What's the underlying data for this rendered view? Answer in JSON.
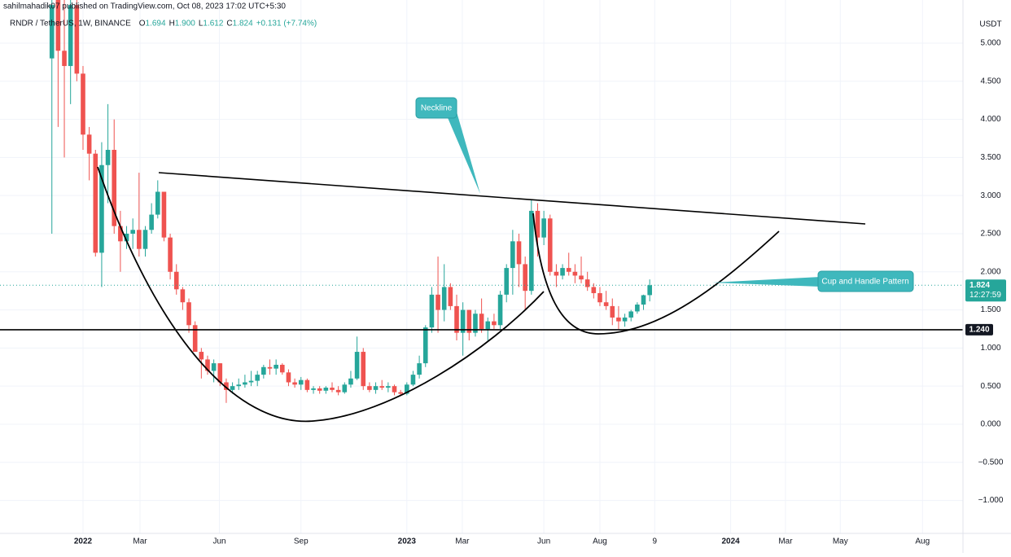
{
  "chart_data": {
    "type": "candlestick",
    "caption": "sahilmahadik07 published on TradingView.com, Oct 08, 2023 17:02 UTC+5:30",
    "title": "RNDR / TetherUS, 1W, BINANCE",
    "legend": [
      {
        "label": "O",
        "value": "1.694"
      },
      {
        "label": "H",
        "value": "1.900"
      },
      {
        "label": "L",
        "value": "1.612"
      },
      {
        "label": "C",
        "value": "1.824"
      }
    ],
    "change": "+0.131 (+7.74%)",
    "currency": "USDT",
    "countdown": "12:27:59",
    "annotations": [
      "Neckline",
      "Cup and Handle Pattern"
    ],
    "hline": {
      "value": 1.24,
      "label": "1.240"
    },
    "up_color": "#26a69a",
    "down_color": "#ef5350",
    "grid": true,
    "x": [
      -5,
      -4,
      -3,
      -2,
      -1,
      0,
      1,
      2,
      3,
      4,
      5,
      6,
      7,
      8,
      9,
      10,
      11,
      12,
      13,
      14,
      15,
      16,
      17,
      18,
      19,
      20,
      21,
      22,
      23,
      24,
      25,
      26,
      27,
      28,
      29,
      30,
      31,
      32,
      33,
      34,
      35,
      36,
      37,
      38,
      39,
      40,
      41,
      42,
      43,
      44,
      45,
      46,
      47,
      48,
      49,
      50,
      51,
      52,
      53,
      54,
      55,
      56,
      57,
      58,
      59,
      60,
      61,
      62,
      63,
      64,
      65,
      66,
      67,
      68,
      69,
      70,
      71,
      72,
      73,
      74,
      75,
      76,
      77,
      78,
      79,
      80,
      81,
      82,
      83,
      84,
      85,
      86,
      87,
      88,
      89,
      90,
      91
    ],
    "open": [
      4.8,
      5.6,
      4.9,
      4.7,
      5.5,
      4.6,
      3.8,
      3.55,
      2.25,
      3.4,
      3.6,
      2.6,
      2.4,
      2.5,
      2.55,
      2.3,
      2.55,
      2.75,
      3.05,
      2.45,
      2.0,
      1.77,
      1.6,
      1.3,
      0.95,
      0.85,
      0.7,
      0.8,
      0.55,
      0.45,
      0.5,
      0.52,
      0.55,
      0.57,
      0.65,
      0.75,
      0.73,
      0.78,
      0.68,
      0.55,
      0.52,
      0.58,
      0.45,
      0.47,
      0.44,
      0.48,
      0.45,
      0.42,
      0.52,
      0.6,
      0.95,
      0.5,
      0.45,
      0.5,
      0.48,
      0.5,
      0.42,
      0.4,
      0.52,
      0.65,
      0.8,
      1.27,
      1.7,
      1.5,
      1.8,
      1.55,
      1.2,
      1.5,
      1.2,
      1.45,
      1.25,
      1.35,
      1.3,
      1.7,
      2.05,
      2.4,
      2.1,
      1.75,
      2.8,
      2.45,
      2.7,
      2.0,
      1.95,
      2.05,
      2.0,
      1.95,
      1.9,
      1.8,
      1.72,
      1.6,
      1.55,
      1.4,
      1.35,
      1.4,
      1.48,
      1.57,
      1.694
    ],
    "high": [
      5.6,
      5.6,
      5.6,
      5.6,
      5.6,
      4.7,
      3.9,
      3.6,
      3.7,
      4.2,
      4.0,
      2.8,
      2.6,
      2.7,
      3.3,
      2.6,
      2.9,
      3.2,
      3.05,
      2.5,
      2.1,
      1.8,
      1.65,
      1.35,
      1.0,
      0.9,
      0.85,
      0.8,
      0.6,
      0.55,
      0.6,
      0.65,
      0.7,
      0.7,
      0.78,
      0.85,
      0.85,
      0.8,
      0.72,
      0.6,
      0.62,
      0.6,
      0.5,
      0.5,
      0.5,
      0.55,
      0.5,
      0.55,
      0.7,
      1.15,
      1.0,
      0.55,
      0.55,
      0.58,
      0.55,
      0.52,
      0.45,
      0.55,
      0.7,
      0.9,
      1.3,
      1.8,
      2.2,
      2.1,
      1.85,
      1.7,
      1.6,
      1.5,
      1.5,
      1.65,
      1.4,
      1.45,
      1.75,
      2.1,
      2.55,
      2.5,
      2.2,
      2.95,
      2.9,
      2.8,
      2.75,
      2.1,
      2.1,
      2.25,
      2.1,
      2.2,
      2.0,
      1.85,
      1.8,
      1.75,
      1.65,
      1.55,
      1.45,
      1.5,
      1.6,
      1.7,
      1.9
    ],
    "low": [
      2.5,
      3.9,
      3.5,
      4.2,
      4.5,
      3.6,
      3.2,
      2.2,
      1.8,
      2.9,
      2.5,
      2.0,
      2.3,
      2.3,
      2.2,
      2.2,
      2.5,
      2.7,
      2.4,
      1.9,
      1.7,
      1.5,
      1.2,
      0.95,
      0.6,
      0.65,
      0.55,
      0.5,
      0.28,
      0.4,
      0.45,
      0.48,
      0.5,
      0.5,
      0.6,
      0.65,
      0.65,
      0.65,
      0.5,
      0.48,
      0.45,
      0.42,
      0.4,
      0.4,
      0.4,
      0.42,
      0.38,
      0.4,
      0.48,
      0.58,
      0.45,
      0.42,
      0.4,
      0.45,
      0.42,
      0.38,
      0.38,
      0.38,
      0.5,
      0.6,
      0.75,
      1.2,
      1.2,
      1.35,
      1.5,
      1.1,
      0.9,
      1.1,
      1.15,
      1.2,
      1.1,
      1.25,
      1.25,
      1.6,
      1.7,
      1.8,
      1.5,
      1.7,
      2.2,
      2.35,
      1.95,
      1.8,
      1.9,
      1.95,
      1.85,
      1.85,
      1.75,
      1.65,
      1.55,
      1.5,
      1.3,
      1.25,
      1.28,
      1.35,
      1.45,
      1.5,
      1.612
    ],
    "close": [
      5.5,
      4.9,
      4.7,
      5.5,
      4.6,
      3.8,
      3.55,
      2.25,
      3.4,
      3.6,
      2.6,
      2.4,
      2.5,
      2.55,
      2.3,
      2.55,
      2.75,
      3.05,
      2.45,
      2.0,
      1.77,
      1.6,
      1.3,
      0.95,
      0.85,
      0.7,
      0.8,
      0.55,
      0.45,
      0.5,
      0.52,
      0.55,
      0.57,
      0.65,
      0.75,
      0.73,
      0.78,
      0.68,
      0.55,
      0.52,
      0.58,
      0.45,
      0.47,
      0.44,
      0.48,
      0.45,
      0.42,
      0.52,
      0.6,
      0.95,
      0.5,
      0.45,
      0.5,
      0.48,
      0.5,
      0.42,
      0.4,
      0.52,
      0.65,
      0.8,
      1.27,
      1.7,
      1.5,
      1.8,
      1.55,
      1.2,
      1.5,
      1.2,
      1.45,
      1.25,
      1.35,
      1.3,
      1.7,
      2.05,
      2.4,
      2.1,
      1.75,
      2.8,
      2.45,
      2.7,
      2.0,
      1.95,
      2.05,
      2.0,
      1.95,
      1.9,
      1.8,
      1.72,
      1.6,
      1.55,
      1.4,
      1.35,
      1.4,
      1.48,
      1.57,
      1.693,
      1.824
    ],
    "xlim": [
      -13.33,
      141.3
    ],
    "xticks": [
      {
        "value": 0,
        "label": "2022"
      },
      {
        "value": 9.15,
        "label": "Mar"
      },
      {
        "value": 21.9,
        "label": "Jun"
      },
      {
        "value": 35,
        "label": "Sep"
      },
      {
        "value": 52,
        "label": "2023"
      },
      {
        "value": 60.9,
        "label": "Mar"
      },
      {
        "value": 74,
        "label": "Jun"
      },
      {
        "value": 83,
        "label": "Aug"
      },
      {
        "value": 91.8,
        "label": "9"
      },
      {
        "value": 104,
        "label": "2024"
      },
      {
        "value": 112.8,
        "label": "Mar"
      },
      {
        "value": 121.6,
        "label": "May"
      },
      {
        "value": 134.8,
        "label": "Aug"
      }
    ],
    "ylim": [
      -1.432,
      5.566
    ],
    "yticks": [
      {
        "value": -1,
        "label": "−1.000"
      },
      {
        "value": -0.5,
        "label": "−0.500"
      },
      {
        "value": 0,
        "label": "0.000"
      },
      {
        "value": 0.5,
        "label": "0.500"
      },
      {
        "value": 1,
        "label": "1.000"
      },
      {
        "value": 1.5,
        "label": "1.500"
      },
      {
        "value": 2,
        "label": "2.000"
      },
      {
        "value": 2.5,
        "label": "2.500"
      },
      {
        "value": 3,
        "label": "3.000"
      },
      {
        "value": 3.5,
        "label": "3.500"
      },
      {
        "value": 4,
        "label": "4.000"
      },
      {
        "value": 4.5,
        "label": "4.500"
      },
      {
        "value": 5,
        "label": "5.000"
      }
    ]
  }
}
